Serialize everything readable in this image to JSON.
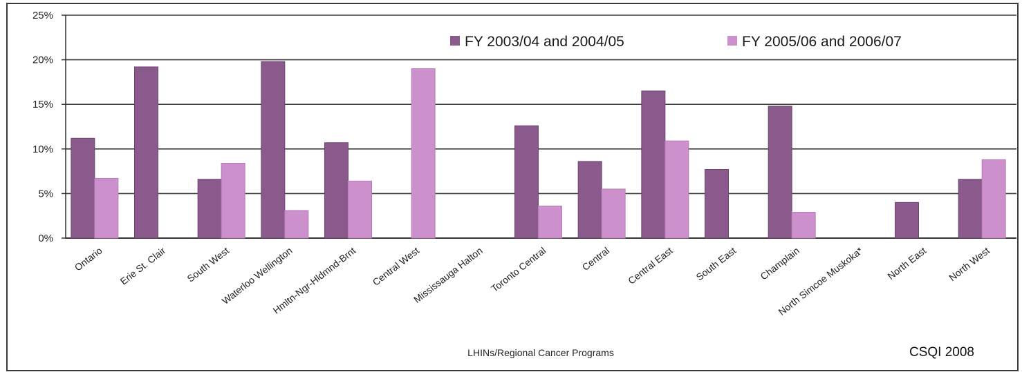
{
  "chart_data": {
    "type": "bar",
    "categories": [
      "Ontario",
      "Erie St. Clair",
      "South West",
      "Waterloo Wellington",
      "Hmltn-Ngr-Hldmnd-Brnt",
      "Central West",
      "Mississauga Halton",
      "Toronto Central",
      "Central",
      "Central East",
      "South East",
      "Champlain",
      "North Simcoe Muskoka*",
      "North East",
      "North West"
    ],
    "series": [
      {
        "name": "FY 2003/04 and 2004/05",
        "color": "#8b5a8c",
        "values": [
          11.2,
          19.2,
          6.6,
          19.8,
          10.7,
          0,
          0,
          12.6,
          8.6,
          16.5,
          7.7,
          14.8,
          0,
          4.0,
          6.6
        ]
      },
      {
        "name": "FY 2005/06 and 2006/07",
        "color": "#cc90cc",
        "values": [
          6.7,
          0,
          8.4,
          3.1,
          6.4,
          19.0,
          0,
          3.6,
          5.5,
          10.9,
          0,
          2.9,
          0,
          0,
          8.8
        ]
      }
    ],
    "y_ticks": [
      "0%",
      "5%",
      "10%",
      "15%",
      "20%",
      "25%"
    ],
    "ylim": [
      0,
      25
    ],
    "grid": true,
    "legend_position": "top-right",
    "xlabel": "LHINs/Regional Cancer Programs",
    "ylabel": "",
    "title": "",
    "source": "CSQI 2008"
  }
}
